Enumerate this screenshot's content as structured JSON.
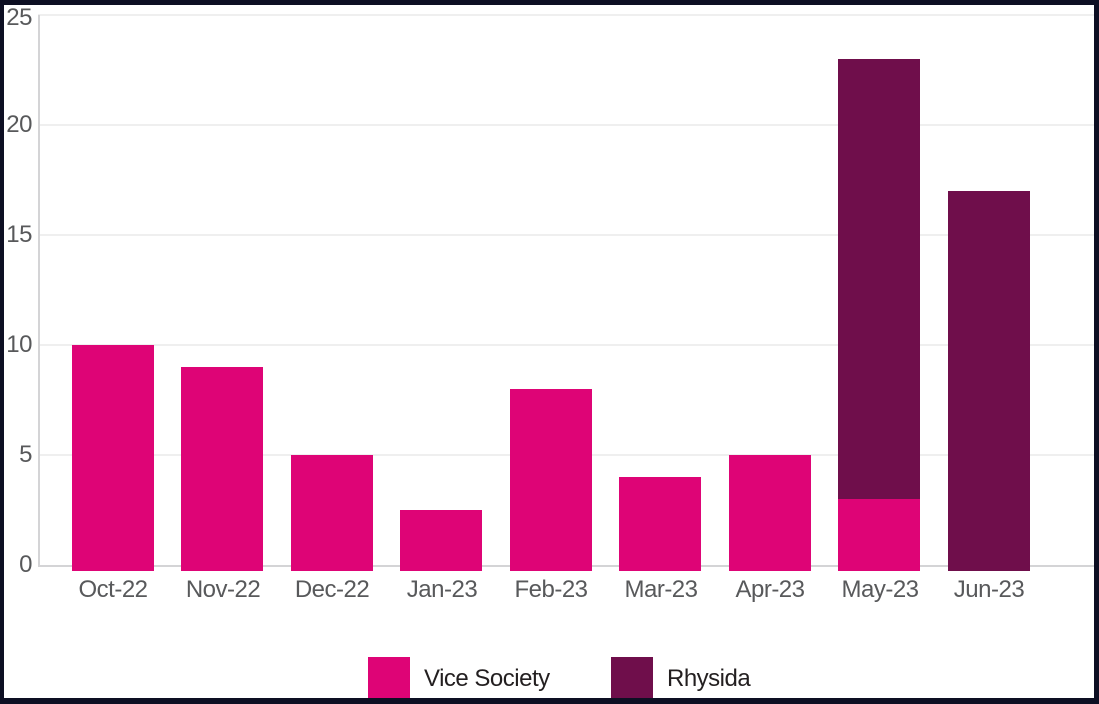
{
  "chart_data": {
    "type": "bar",
    "stacked": true,
    "title": "",
    "xlabel": "",
    "ylabel": "",
    "categories": [
      "Oct-22",
      "Nov-22",
      "Dec-22",
      "Jan-23",
      "Feb-23",
      "Mar-23",
      "Apr-23",
      "May-23",
      "Jun-23"
    ],
    "series": [
      {
        "name": "Vice Society",
        "color": "#de0476",
        "values": [
          10,
          9,
          5,
          2.5,
          8,
          4,
          5,
          3,
          0
        ]
      },
      {
        "name": "Rhysida",
        "color": "#6f0e4b",
        "values": [
          0,
          0,
          0,
          0,
          0,
          0,
          0,
          20,
          17
        ]
      }
    ],
    "ylim": [
      0,
      25
    ],
    "yticks": [
      0,
      5,
      10,
      15,
      20,
      25
    ],
    "grid": true,
    "legend_position": "bottom"
  },
  "colors": {
    "frame_border": "#0d0f23",
    "background": "#ffffff",
    "gridline": "#efefef",
    "axis_line": "#d4d4d6",
    "tick_label": "#58595b",
    "legend_text": "#231f20"
  }
}
